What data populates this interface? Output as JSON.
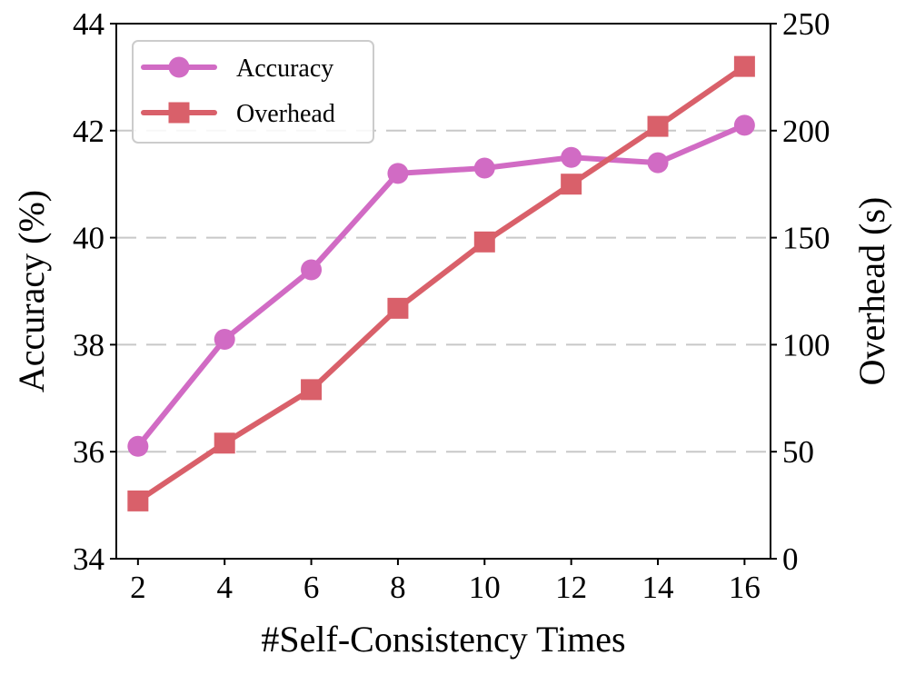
{
  "chart_data": {
    "type": "line",
    "x": [
      2,
      4,
      6,
      8,
      10,
      12,
      14,
      16
    ],
    "xlabel": "#Self-Consistency Times",
    "x_ticks": [
      "2",
      "4",
      "6",
      "8",
      "10",
      "12",
      "14",
      "16"
    ],
    "xlim": [
      1.5,
      16.6
    ],
    "y_left": {
      "label": "Accuracy (%)",
      "lim": [
        34,
        44
      ],
      "ticks": [
        34,
        36,
        38,
        40,
        42,
        44
      ]
    },
    "y_right": {
      "label": "Overhead (s)",
      "lim": [
        0,
        250
      ],
      "ticks": [
        0,
        50,
        100,
        150,
        200,
        250
      ]
    },
    "grid": "horizontal-dashed",
    "legend_position": "top-left",
    "series": [
      {
        "name": "Accuracy",
        "axis": "left",
        "marker": "circle",
        "color": "#d16bc4",
        "values": [
          36.1,
          38.1,
          39.4,
          41.2,
          41.3,
          41.5,
          41.4,
          42.1
        ]
      },
      {
        "name": "Overhead",
        "axis": "right",
        "marker": "square",
        "color": "#d9606a",
        "values": [
          27,
          54,
          79,
          117,
          148,
          175,
          202,
          230
        ]
      }
    ]
  }
}
